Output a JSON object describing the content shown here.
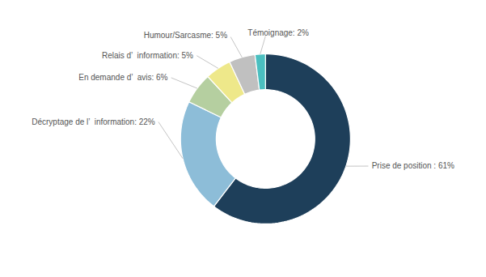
{
  "chart_data": {
    "type": "donut",
    "categories": [
      "Prise de position : 61%",
      "Décryptage de l’  information: 22%",
      "En demande d’  avis: 6%",
      "Relais d’  information: 5%",
      "Humour/Sarcasme: 5%",
      "Témoignage: 2%"
    ],
    "values": [
      61,
      22,
      6,
      5,
      5,
      2
    ],
    "colors": [
      "#1e3f5a",
      "#8dbdd8",
      "#b5cfa0",
      "#eee88a",
      "#c0c0c0",
      "#4bbfc0"
    ],
    "tick_labels": false
  }
}
